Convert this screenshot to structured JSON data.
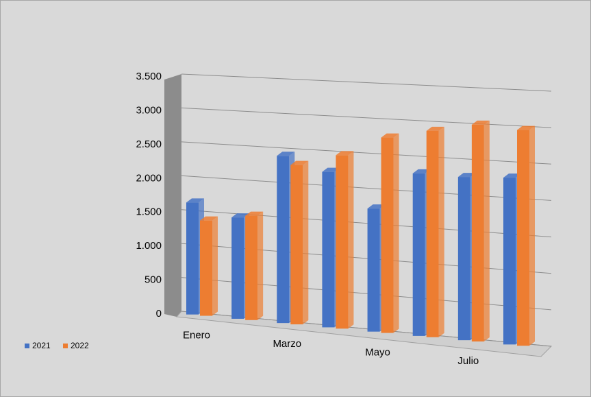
{
  "chart_data": {
    "type": "bar3d",
    "categories": [
      "Enero",
      null,
      "Marzo",
      null,
      "Mayo",
      null,
      "Julio",
      null
    ],
    "series": [
      {
        "name": "2021",
        "color": "#4472c4",
        "values": [
          1650,
          1480,
          2420,
          2230,
          1750,
          2290,
          2280,
          2310
        ]
      },
      {
        "name": "2022",
        "color": "#ed7d31",
        "values": [
          1400,
          1520,
          2300,
          2480,
          2770,
          2900,
          3020,
          2980
        ]
      }
    ],
    "ylim": [
      0,
      3500
    ],
    "yticks": [
      0,
      {
        "value": 500,
        "label": "500"
      },
      {
        "value": 1000,
        "label": "1.000"
      },
      {
        "value": 1500,
        "label": "1.500"
      },
      {
        "value": 2000,
        "label": "2.000"
      },
      {
        "value": 2500,
        "label": "2.500"
      },
      {
        "value": 3000,
        "label": "3.000"
      },
      {
        "value": 3500,
        "label": "3.500"
      }
    ],
    "grid": true,
    "legend": "bottom-left"
  }
}
